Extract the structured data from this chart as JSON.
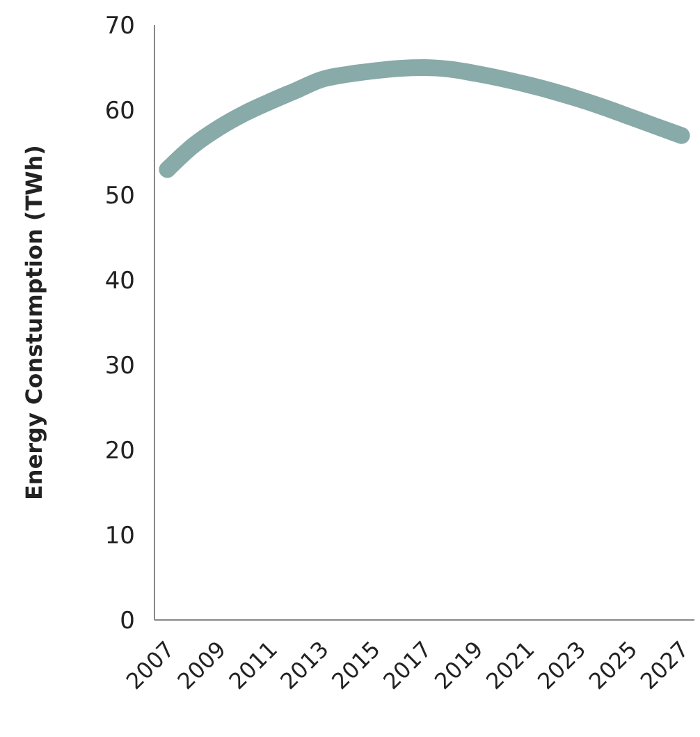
{
  "chart_data": {
    "type": "line",
    "ylabel": "Energy Constumption (TWh)",
    "categories": [
      "2007",
      null,
      "2009",
      null,
      "2011",
      null,
      "2013",
      null,
      "2015",
      null,
      "2017",
      null,
      "2019",
      null,
      "2021",
      null,
      "2023",
      null,
      "2025",
      null,
      "2027"
    ],
    "series": [
      {
        "color": "#88aaa8",
        "values": [
          53.0,
          55.8,
          57.9,
          59.6,
          61.0,
          62.3,
          63.6,
          64.2,
          64.6,
          64.9,
          65.0,
          64.8,
          64.3,
          63.7,
          63.0,
          62.2,
          61.3,
          60.3,
          59.2,
          58.1,
          57.0
        ]
      }
    ],
    "ylim": [
      0,
      70
    ],
    "yticks": [
      0,
      10,
      20,
      30,
      40,
      50,
      60,
      70
    ],
    "grid": false,
    "line_style": "solid"
  }
}
